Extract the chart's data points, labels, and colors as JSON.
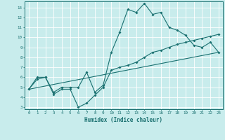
{
  "xlabel": "Humidex (Indice chaleur)",
  "bg_color": "#c8ecec",
  "line_color": "#1a7070",
  "grid_color": "#ffffff",
  "xlim": [
    -0.5,
    23.5
  ],
  "ylim": [
    2.8,
    13.6
  ],
  "yticks": [
    3,
    4,
    5,
    6,
    7,
    8,
    9,
    10,
    11,
    12,
    13
  ],
  "xticks": [
    0,
    1,
    2,
    3,
    4,
    5,
    6,
    7,
    8,
    9,
    10,
    11,
    12,
    13,
    14,
    15,
    16,
    17,
    18,
    19,
    20,
    21,
    22,
    23
  ],
  "line1_x": [
    0,
    1,
    2,
    3,
    4,
    5,
    6,
    7,
    8,
    9,
    10,
    11,
    12,
    13,
    14,
    15,
    16,
    17,
    18,
    19,
    20,
    21,
    22,
    23
  ],
  "line1_y": [
    4.8,
    6.0,
    6.0,
    4.5,
    5.0,
    5.0,
    5.0,
    6.5,
    4.5,
    5.2,
    8.5,
    10.5,
    12.8,
    12.5,
    13.4,
    12.3,
    12.5,
    11.0,
    10.7,
    10.2,
    9.2,
    9.0,
    9.5,
    8.5
  ],
  "line2_x": [
    0,
    1,
    2,
    3,
    4,
    5,
    6,
    7,
    8,
    9,
    10,
    11,
    12,
    13,
    14,
    15,
    16,
    17,
    18,
    19,
    20,
    21,
    22,
    23
  ],
  "line2_y": [
    4.8,
    5.8,
    6.0,
    4.3,
    4.8,
    4.8,
    3.0,
    3.4,
    4.2,
    5.0,
    6.7,
    7.0,
    7.2,
    7.5,
    8.0,
    8.5,
    8.7,
    9.0,
    9.3,
    9.5,
    9.7,
    9.9,
    10.1,
    10.3
  ],
  "line3_x": [
    0,
    23
  ],
  "line3_y": [
    4.8,
    8.5
  ]
}
